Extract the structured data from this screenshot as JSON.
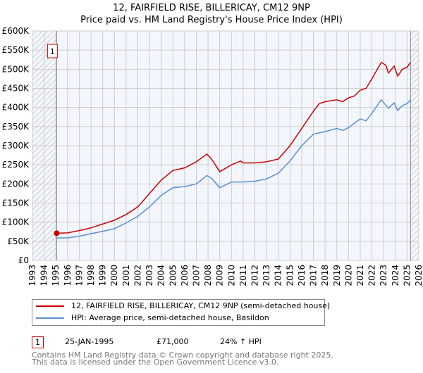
{
  "chart_data": {
    "type": "line",
    "title": "12, FAIRFIELD RISE, BILLERICAY, CM12 9NP",
    "subtitle": "Price paid vs. HM Land Registry's House Price Index (HPI)",
    "xlim": [
      1993,
      2026
    ],
    "ylim": [
      0,
      600000
    ],
    "x_ticks": [
      "1993",
      "1994",
      "1995",
      "1996",
      "1997",
      "1998",
      "1999",
      "2000",
      "2001",
      "2002",
      "2003",
      "2004",
      "2005",
      "2006",
      "2007",
      "2008",
      "2009",
      "2010",
      "2011",
      "2012",
      "2013",
      "2014",
      "2015",
      "2016",
      "2017",
      "2018",
      "2019",
      "2020",
      "2021",
      "2022",
      "2023",
      "2024",
      "2025",
      "2026"
    ],
    "y_ticks": [
      {
        "v": 0,
        "l": "£0"
      },
      {
        "v": 50000,
        "l": "£50K"
      },
      {
        "v": 100000,
        "l": "£100K"
      },
      {
        "v": 150000,
        "l": "£150K"
      },
      {
        "v": 200000,
        "l": "£200K"
      },
      {
        "v": 250000,
        "l": "£250K"
      },
      {
        "v": 300000,
        "l": "£300K"
      },
      {
        "v": 350000,
        "l": "£350K"
      },
      {
        "v": 400000,
        "l": "£400K"
      },
      {
        "v": 450000,
        "l": "£450K"
      },
      {
        "v": 500000,
        "l": "£500K"
      },
      {
        "v": 550000,
        "l": "£550K"
      },
      {
        "v": 600000,
        "l": "£600K"
      }
    ],
    "grid": true,
    "hatched_before": 1995.07,
    "hatched_after": 2025.3,
    "series": [
      {
        "name": "12, FAIRFIELD RISE, BILLERICAY, CM12 9NP (semi-detached house)",
        "color": "#cc0000",
        "points": [
          [
            1995.07,
            71
          ],
          [
            1996,
            72
          ],
          [
            1997,
            78
          ],
          [
            1998,
            85
          ],
          [
            1999,
            95
          ],
          [
            2000,
            105
          ],
          [
            2001,
            120
          ],
          [
            2002,
            140
          ],
          [
            2003,
            175
          ],
          [
            2004,
            210
          ],
          [
            2005,
            235
          ],
          [
            2006,
            242
          ],
          [
            2007,
            258
          ],
          [
            2007.9,
            278
          ],
          [
            2008.3,
            265
          ],
          [
            2009,
            232
          ],
          [
            2010,
            250
          ],
          [
            2010.8,
            260
          ],
          [
            2011,
            255
          ],
          [
            2012,
            255
          ],
          [
            2013,
            258
          ],
          [
            2014,
            265
          ],
          [
            2015,
            300
          ],
          [
            2016,
            345
          ],
          [
            2017,
            390
          ],
          [
            2017.5,
            410
          ],
          [
            2018,
            415
          ],
          [
            2019,
            420
          ],
          [
            2019.5,
            415
          ],
          [
            2020,
            425
          ],
          [
            2020.5,
            430
          ],
          [
            2021,
            445
          ],
          [
            2021.5,
            450
          ],
          [
            2022,
            475
          ],
          [
            2022.8,
            518
          ],
          [
            2023.2,
            510
          ],
          [
            2023.4,
            490
          ],
          [
            2023.9,
            508
          ],
          [
            2024.2,
            482
          ],
          [
            2024.6,
            500
          ],
          [
            2025,
            505
          ],
          [
            2025.3,
            518
          ]
        ]
      },
      {
        "name": "HPI: Average price, semi-detached house, Basildon",
        "color": "#5b8fd4",
        "points": [
          [
            1995.07,
            59
          ],
          [
            1996,
            59
          ],
          [
            1997,
            63
          ],
          [
            1998,
            70
          ],
          [
            1999,
            76
          ],
          [
            2000,
            83
          ],
          [
            2001,
            98
          ],
          [
            2002,
            115
          ],
          [
            2003,
            140
          ],
          [
            2004,
            170
          ],
          [
            2005,
            190
          ],
          [
            2006,
            193
          ],
          [
            2007,
            200
          ],
          [
            2007.9,
            222
          ],
          [
            2008.3,
            215
          ],
          [
            2009,
            190
          ],
          [
            2010,
            205
          ],
          [
            2011,
            205
          ],
          [
            2012,
            207
          ],
          [
            2013,
            213
          ],
          [
            2014,
            228
          ],
          [
            2015,
            260
          ],
          [
            2016,
            300
          ],
          [
            2017,
            330
          ],
          [
            2018,
            337
          ],
          [
            2019,
            345
          ],
          [
            2019.5,
            340
          ],
          [
            2020,
            347
          ],
          [
            2021,
            370
          ],
          [
            2021.5,
            365
          ],
          [
            2022,
            385
          ],
          [
            2022.8,
            420
          ],
          [
            2023.4,
            398
          ],
          [
            2023.9,
            412
          ],
          [
            2024.2,
            392
          ],
          [
            2024.6,
            405
          ],
          [
            2025,
            410
          ],
          [
            2025.3,
            420
          ]
        ]
      }
    ],
    "annotations": [
      {
        "label": "1",
        "x": 1995.07,
        "y": 71000
      }
    ]
  },
  "transactions": [
    {
      "num": "1",
      "date": "25-JAN-1995",
      "price": "£71,000",
      "hpi": "24% ↑ HPI"
    }
  ],
  "footer": [
    "Contains HM Land Registry data © Crown copyright and database right 2025.",
    "This data is licensed under the Open Government Licence v3.0."
  ]
}
